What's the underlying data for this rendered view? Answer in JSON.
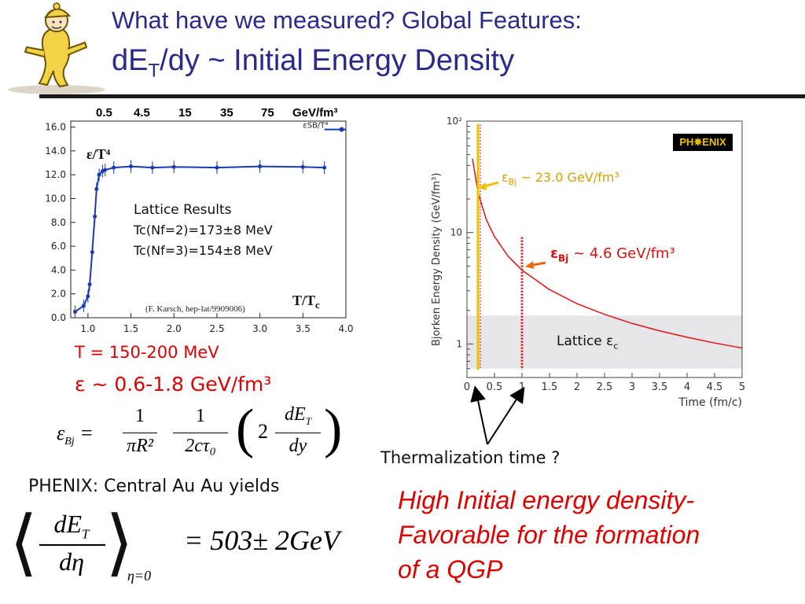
{
  "slide": {
    "title_line1": "What have we measured? Global Features:",
    "title_line2_pre": "dE",
    "title_line2_sub": "T",
    "title_line2_post": "/dy ~ Initial Energy Density"
  },
  "lattice_chart": {
    "top_scale": [
      "0.5",
      "4.5",
      "15",
      "35",
      "75",
      "GeV/fm³"
    ],
    "y_ticks": [
      "16.0",
      "14.0",
      "12.0",
      "10.0",
      "8.0",
      "6.0",
      "4.0",
      "2.0",
      "0.0"
    ],
    "x_ticks": [
      "1.0",
      "1.5",
      "2.0",
      "2.5",
      "3.0",
      "3.5",
      "4.0"
    ],
    "y_label": "ε/T⁴",
    "x_label": "T/T",
    "x_label_sub": "c",
    "sb_label": "εSB/T⁴",
    "legend_title": "Lattice Results",
    "legend_line1": "Tc(Nf=2)=173±8 MeV",
    "legend_line2": "Tc(Nf=3)=154±8 MeV",
    "citation": "(F. Karsch, hep-lat/9909006)"
  },
  "chart_data": [
    {
      "type": "line",
      "xlabel": "T/Tc",
      "ylabel": "ε/T⁴",
      "xlim": [
        0.8,
        4.0
      ],
      "ylim": [
        0,
        16.5
      ],
      "x": [
        0.85,
        0.95,
        1.0,
        1.02,
        1.05,
        1.08,
        1.1,
        1.13,
        1.17,
        1.2,
        1.3,
        1.5,
        1.75,
        2.0,
        2.5,
        3.0,
        3.5,
        3.75
      ],
      "series": [
        {
          "values": [
            0.5,
            1.0,
            1.8,
            2.8,
            5.5,
            8.5,
            10.8,
            12.0,
            12.3,
            12.4,
            12.6,
            12.7,
            12.6,
            12.65,
            12.6,
            12.7,
            12.65,
            12.6
          ]
        }
      ],
      "reference_line": 15.8
    },
    {
      "type": "line",
      "xlabel": "Time (fm/c)",
      "ylabel": "Bjorken Energy Density (GeV/fm³)",
      "yscale": "log",
      "xlim": [
        0,
        5
      ],
      "ylim": [
        0.5,
        100
      ],
      "x": [
        0.1,
        0.2,
        0.35,
        0.5,
        0.75,
        1.0,
        1.5,
        2.0,
        2.5,
        3.0,
        3.5,
        4.0,
        4.5,
        5.0
      ],
      "series": [
        {
          "values": [
            46,
            23,
            13.1,
            9.2,
            6.1,
            4.6,
            3.07,
            2.3,
            1.84,
            1.53,
            1.31,
            1.15,
            1.02,
            0.92
          ]
        }
      ],
      "band": {
        "label": "Lattice εc",
        "y": [
          0.6,
          1.8
        ]
      },
      "markers": [
        0.2,
        1.0
      ]
    }
  ],
  "bjorken_chart": {
    "y_label": "Bjorken Energy Density (GeV/fm³)",
    "y_ticks": [
      "10²",
      "10",
      "1"
    ],
    "x_ticks": [
      "0",
      "0.5",
      "1",
      "1.5",
      "2",
      "2.5",
      "3",
      "3.5",
      "4",
      "4.5",
      "5"
    ],
    "x_label": "Time (fm/c)",
    "logo": "PH✵ENIX",
    "ann_yellow_pre": "ε",
    "ann_yellow_sub": "Bj",
    "ann_yellow_post": " ~  23.0 GeV/fm³",
    "ann_red_pre": "ε",
    "ann_red_sub": "Bj",
    "ann_red_post": " ~ 4.6 GeV/fm³",
    "band_label_pre": "Lattice ε",
    "band_label_sub": "c",
    "colors": {
      "curve": "#e02020",
      "band": "#e6e6ea",
      "yellow": "#f0c000"
    }
  },
  "notes": {
    "temp": "T = 150-200 MeV",
    "eps": "ε ~  0.6-1.8 GeV/fm³",
    "thermal": "Thermalization time ?",
    "phenix_yields": "PHENIX:  Central Au Au yields",
    "formula1_lhs": "ε",
    "formula1_lhs_sub": "Bj",
    "f1_num1": "1",
    "f1_den1": "πR²",
    "f1_num2": "1",
    "f1_den2": "2cτ₀",
    "f1_coef": "2",
    "f1_num3": "dE",
    "f1_num3_sub": "T",
    "f1_den3": "dy",
    "f2_num": "dE",
    "f2_num_sub": "T",
    "f2_den": "dη",
    "f2_sub": "η=0",
    "f2_rhs": "= 503± 2GeV",
    "conclusion": [
      "High Initial energy density-",
      "Favorable for the formation",
      "of a QGP"
    ]
  }
}
